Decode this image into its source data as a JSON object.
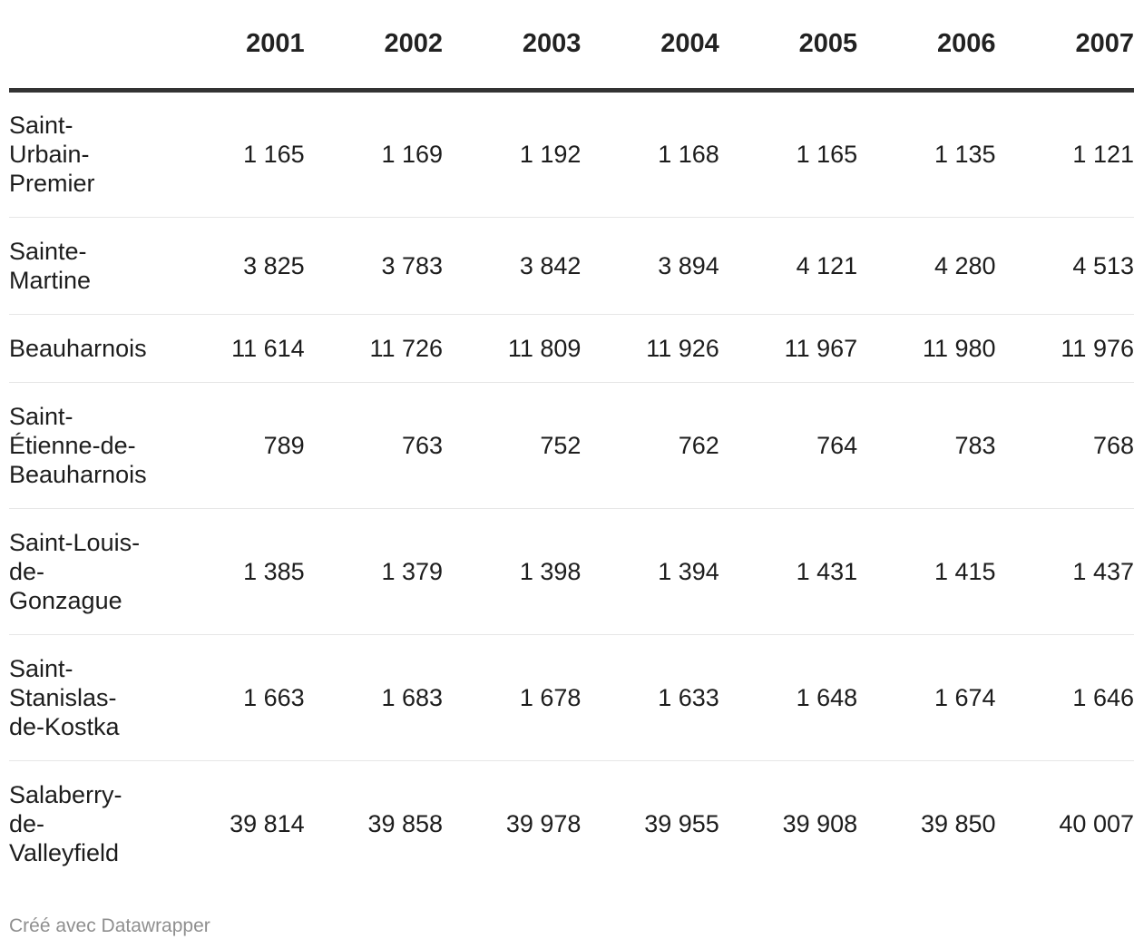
{
  "chart_data": {
    "type": "table",
    "columns": [
      "",
      "2001",
      "2002",
      "2003",
      "2004",
      "2005",
      "2006",
      "2007"
    ],
    "rows": [
      {
        "name_lines": [
          "Saint-",
          "Urbain-",
          "Premier"
        ],
        "values": [
          "1 165",
          "1 169",
          "1 192",
          "1 168",
          "1 165",
          "1 135",
          "1 121"
        ]
      },
      {
        "name_lines": [
          "Sainte-",
          "Martine"
        ],
        "values": [
          "3 825",
          "3 783",
          "3 842",
          "3 894",
          "4 121",
          "4 280",
          "4 513"
        ]
      },
      {
        "name_lines": [
          "Beauharnois"
        ],
        "values": [
          "11 614",
          "11 726",
          "11 809",
          "11 926",
          "11 967",
          "11 980",
          "11 976"
        ]
      },
      {
        "name_lines": [
          "Saint-",
          "Étienne-de-",
          "Beauharnois"
        ],
        "values": [
          "789",
          "763",
          "752",
          "762",
          "764",
          "783",
          "768"
        ]
      },
      {
        "name_lines": [
          "Saint-Louis-",
          "de-",
          "Gonzague"
        ],
        "values": [
          "1 385",
          "1 379",
          "1 398",
          "1 394",
          "1 431",
          "1 415",
          "1 437"
        ]
      },
      {
        "name_lines": [
          "Saint-",
          "Stanislas-",
          "de-Kostka"
        ],
        "values": [
          "1 663",
          "1 683",
          "1 678",
          "1 633",
          "1 648",
          "1 674",
          "1 646"
        ]
      },
      {
        "name_lines": [
          "Salaberry-",
          "de-",
          "Valleyfield"
        ],
        "values": [
          "39 814",
          "39 858",
          "39 978",
          "39 955",
          "39 908",
          "39 850",
          "40 007"
        ]
      }
    ]
  },
  "footer": {
    "credit": "Créé avec Datawrapper"
  },
  "colors": {
    "text": "#1d1d1d",
    "header_rule": "#333333",
    "row_rule": "#e6e6e6",
    "footer_text": "#8f8f8f"
  }
}
